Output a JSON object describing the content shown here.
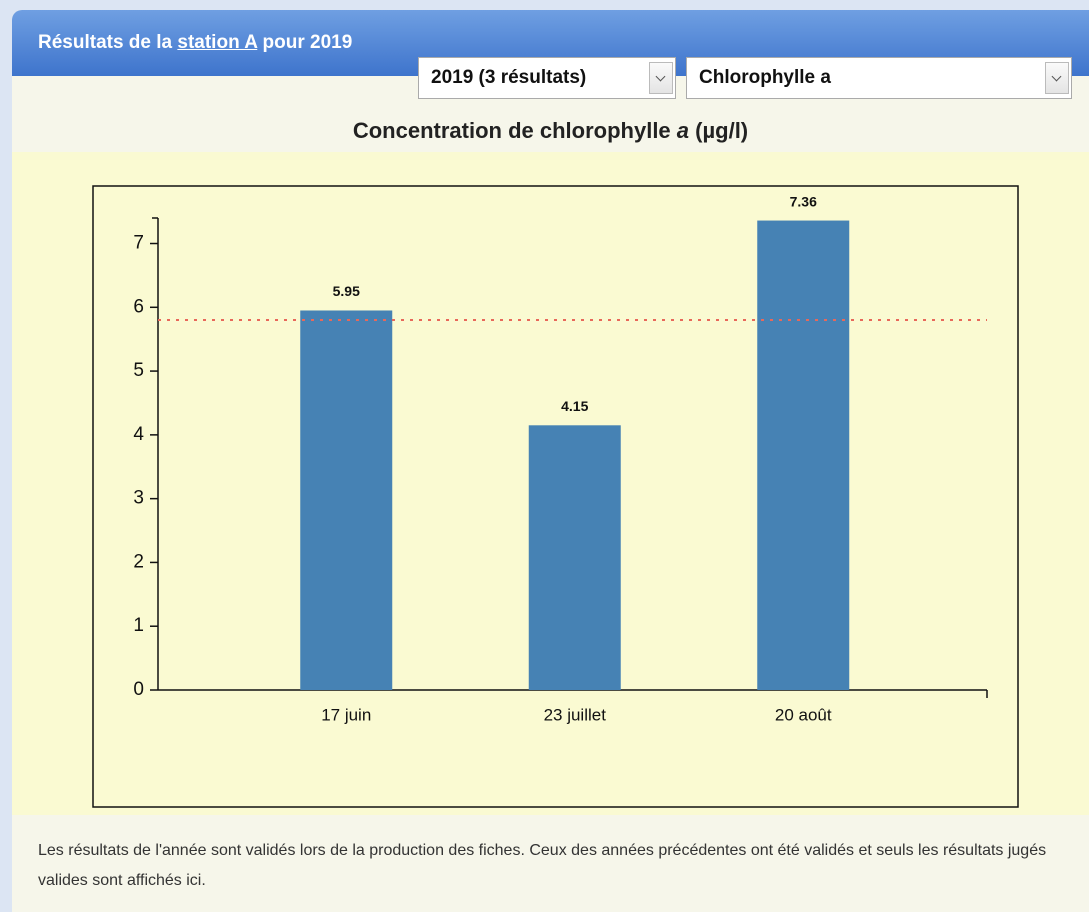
{
  "header": {
    "title_before": "Résultats de la ",
    "title_link": "station A",
    "title_after": " pour 2019"
  },
  "selects": {
    "year": "2019 (3 résultats)",
    "parameter": "Chlorophylle a"
  },
  "chart_data": {
    "type": "bar",
    "title": {
      "before": "Concentration de chlorophylle ",
      "italic": "a",
      "after": " (µg/l)"
    },
    "categories": [
      "17 juin",
      "23 juillet",
      "20 août"
    ],
    "values": [
      5.95,
      4.15,
      7.36
    ],
    "color": "#4682b4",
    "ylim": [
      0,
      7.4
    ],
    "yticks": [
      0,
      1,
      2,
      3,
      4,
      5,
      6,
      7
    ],
    "reference_line": {
      "value": 5.8,
      "color": "#e8685a"
    }
  },
  "footer": {
    "note": "Les résultats de l'année sont validés lors de la production des fiches. Ceux des années précédentes ont été validés et seuls les résultats jugés valides sont affichés ici."
  }
}
